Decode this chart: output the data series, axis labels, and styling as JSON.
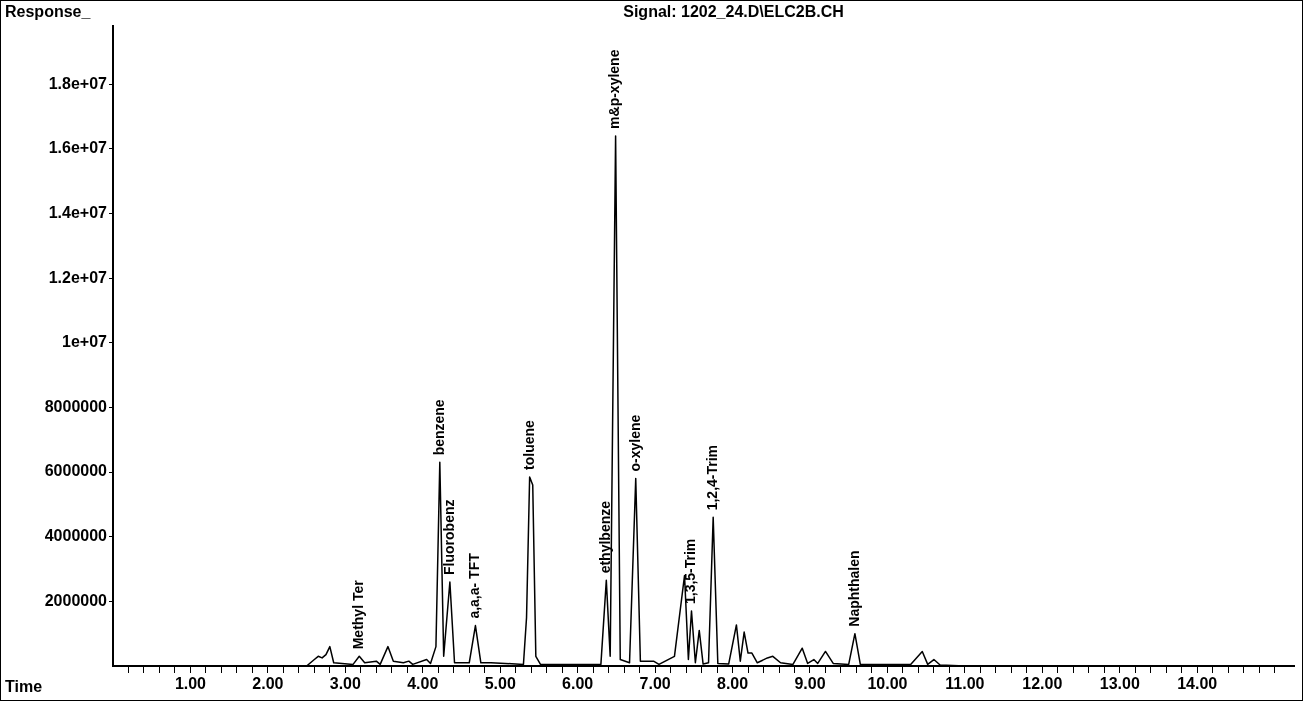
{
  "chart_data": {
    "type": "line",
    "title": "Signal: 1202_24.D\\ELC2B.CH",
    "xlabel": "Time",
    "ylabel": "Response_",
    "x": [
      0,
      2.5,
      2.6,
      2.65,
      2.7,
      2.75,
      2.8,
      2.85,
      3.1,
      3.18,
      3.25,
      3.4,
      3.45,
      3.55,
      3.62,
      3.75,
      3.82,
      3.87,
      4.05,
      4.1,
      4.17,
      4.22,
      4.27,
      4.35,
      4.41,
      4.6,
      4.68,
      4.75,
      4.88,
      5.3,
      5.34,
      5.38,
      5.42,
      5.46,
      5.52,
      6.3,
      6.37,
      6.42,
      6.49,
      6.55,
      6.67,
      6.75,
      6.81,
      6.98,
      7.05,
      7.25,
      7.38,
      7.43,
      7.47,
      7.52,
      7.57,
      7.62,
      7.69,
      7.75,
      7.81,
      7.95,
      8.05,
      8.1,
      8.15,
      8.2,
      8.25,
      8.32,
      8.45,
      8.52,
      8.62,
      8.78,
      8.9,
      8.97,
      9.05,
      9.1,
      9.2,
      9.3,
      9.5,
      9.58,
      9.65,
      10.3,
      10.45,
      10.52,
      10.6,
      10.68,
      11,
      15.25
    ],
    "values": [
      0,
      0,
      200000,
      300000,
      250000,
      350000,
      600000,
      100000,
      50000,
      300000,
      100000,
      150000,
      50000,
      600000,
      150000,
      100000,
      150000,
      50000,
      200000,
      80000,
      600000,
      6300000,
      300000,
      2600000,
      100000,
      100000,
      1250000,
      100000,
      100000,
      50000,
      1500000,
      5850000,
      5600000,
      300000,
      50000,
      50000,
      2650000,
      300000,
      16400000,
      200000,
      100000,
      5800000,
      150000,
      150000,
      50000,
      300000,
      2800000,
      200000,
      1700000,
      100000,
      1100000,
      60000,
      100000,
      4600000,
      80000,
      60000,
      1270000,
      150000,
      1050000,
      400000,
      400000,
      100000,
      250000,
      300000,
      100000,
      50000,
      550000,
      80000,
      200000,
      80000,
      450000,
      80000,
      50000,
      1000000,
      50000,
      50000,
      450000,
      50000,
      200000,
      30000,
      0,
      0
    ],
    "color": "#000000",
    "marker": "none",
    "line_style": "solid",
    "grid": false,
    "legend": false,
    "xlim": [
      0,
      15.25
    ],
    "xticks": [
      {
        "value": 0.2,
        "label": null
      },
      {
        "value": 0.4,
        "label": null
      },
      {
        "value": 0.6,
        "label": null
      },
      {
        "value": 0.8,
        "label": null
      },
      {
        "value": 1,
        "label": "1.00"
      },
      {
        "value": 1.2,
        "label": null
      },
      {
        "value": 1.4,
        "label": null
      },
      {
        "value": 1.6,
        "label": null
      },
      {
        "value": 1.8,
        "label": null
      },
      {
        "value": 2,
        "label": "2.00"
      },
      {
        "value": 2.2,
        "label": null
      },
      {
        "value": 2.4,
        "label": null
      },
      {
        "value": 2.6,
        "label": null
      },
      {
        "value": 2.8,
        "label": null
      },
      {
        "value": 3,
        "label": "3.00"
      },
      {
        "value": 3.2,
        "label": null
      },
      {
        "value": 3.4,
        "label": null
      },
      {
        "value": 3.6,
        "label": null
      },
      {
        "value": 3.8,
        "label": null
      },
      {
        "value": 4,
        "label": "4.00"
      },
      {
        "value": 4.2,
        "label": null
      },
      {
        "value": 4.4,
        "label": null
      },
      {
        "value": 4.6,
        "label": null
      },
      {
        "value": 4.8,
        "label": null
      },
      {
        "value": 5,
        "label": "5.00"
      },
      {
        "value": 5.2,
        "label": null
      },
      {
        "value": 5.4,
        "label": null
      },
      {
        "value": 5.6,
        "label": null
      },
      {
        "value": 5.8,
        "label": null
      },
      {
        "value": 6,
        "label": "6.00"
      },
      {
        "value": 6.2,
        "label": null
      },
      {
        "value": 6.4,
        "label": null
      },
      {
        "value": 6.6,
        "label": null
      },
      {
        "value": 6.8,
        "label": null
      },
      {
        "value": 7,
        "label": "7.00"
      },
      {
        "value": 7.2,
        "label": null
      },
      {
        "value": 7.4,
        "label": null
      },
      {
        "value": 7.6,
        "label": null
      },
      {
        "value": 7.8,
        "label": null
      },
      {
        "value": 8,
        "label": "8.00"
      },
      {
        "value": 8.2,
        "label": null
      },
      {
        "value": 8.4,
        "label": null
      },
      {
        "value": 8.6,
        "label": null
      },
      {
        "value": 8.8,
        "label": null
      },
      {
        "value": 9,
        "label": "9.00"
      },
      {
        "value": 9.2,
        "label": null
      },
      {
        "value": 9.4,
        "label": null
      },
      {
        "value": 9.6,
        "label": null
      },
      {
        "value": 9.8,
        "label": null
      },
      {
        "value": 10,
        "label": "10.00"
      },
      {
        "value": 10.2,
        "label": null
      },
      {
        "value": 10.4,
        "label": null
      },
      {
        "value": 10.6,
        "label": null
      },
      {
        "value": 10.8,
        "label": null
      },
      {
        "value": 11,
        "label": "11.00"
      },
      {
        "value": 11.2,
        "label": null
      },
      {
        "value": 11.4,
        "label": null
      },
      {
        "value": 11.6,
        "label": null
      },
      {
        "value": 11.8,
        "label": null
      },
      {
        "value": 12,
        "label": "12.00"
      },
      {
        "value": 12.2,
        "label": null
      },
      {
        "value": 12.4,
        "label": null
      },
      {
        "value": 12.6,
        "label": null
      },
      {
        "value": 12.8,
        "label": null
      },
      {
        "value": 13,
        "label": "13.00"
      },
      {
        "value": 13.2,
        "label": null
      },
      {
        "value": 13.4,
        "label": null
      },
      {
        "value": 13.6,
        "label": null
      },
      {
        "value": 13.8,
        "label": null
      },
      {
        "value": 14,
        "label": "14.00"
      },
      {
        "value": 14.2,
        "label": null
      },
      {
        "value": 14.4,
        "label": null
      },
      {
        "value": 14.6,
        "label": null
      },
      {
        "value": 14.8,
        "label": null
      },
      {
        "value": 15,
        "label": null
      }
    ],
    "ylim": [
      0,
      19800000
    ],
    "yticks": [
      2000000,
      4000000,
      6000000,
      8000000,
      {
        "value": 10000000,
        "label": "1e+07"
      },
      {
        "value": 12000000,
        "label": "1.2e+07"
      },
      {
        "value": 14000000,
        "label": "1.4e+07"
      },
      {
        "value": 16000000,
        "label": "1.6e+07"
      },
      {
        "value": 18000000,
        "label": "1.8e+07"
      }
    ],
    "annotations": [
      {
        "text": "Methyl Ter",
        "x": 3.18,
        "y": 300000
      },
      {
        "text": "benzene",
        "x": 4.22,
        "y": 6300000
      },
      {
        "text": "Fluorobenz",
        "x": 4.35,
        "y": 2600000
      },
      {
        "text": "a,a,a- TFT",
        "x": 4.68,
        "y": 1250000
      },
      {
        "text": "toluene",
        "x": 5.38,
        "y": 5850000
      },
      {
        "text": "ethylbenze",
        "x": 6.37,
        "y": 2650000
      },
      {
        "text": "m&p-xylene",
        "x": 6.49,
        "y": 16400000
      },
      {
        "text": "o-xylene",
        "x": 6.75,
        "y": 5800000
      },
      {
        "text": "1,3,5-Trim",
        "x": 7.47,
        "y": 1700000
      },
      {
        "text": "1,2,4-Trim",
        "x": 7.75,
        "y": 4600000
      },
      {
        "text": "Naphthalen",
        "x": 9.58,
        "y": 1000000
      }
    ]
  }
}
